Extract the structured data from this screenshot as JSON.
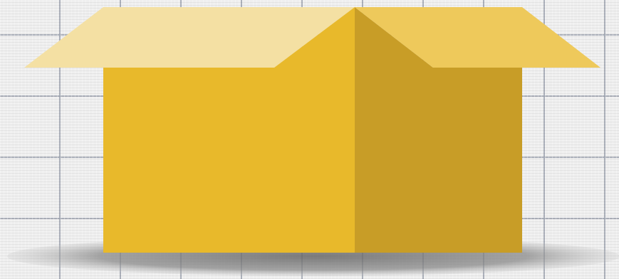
{
  "illustration": {
    "subject": "open-cardboard-box-icon",
    "colors": {
      "background": "#efefef",
      "grid_line": "#a0a6b2",
      "front_face": "#e8b92b",
      "side_face": "#c89d27",
      "left_flap": "#f4e0a3",
      "right_flap": "#eec95b",
      "shadow": "#8a8a8a"
    }
  }
}
